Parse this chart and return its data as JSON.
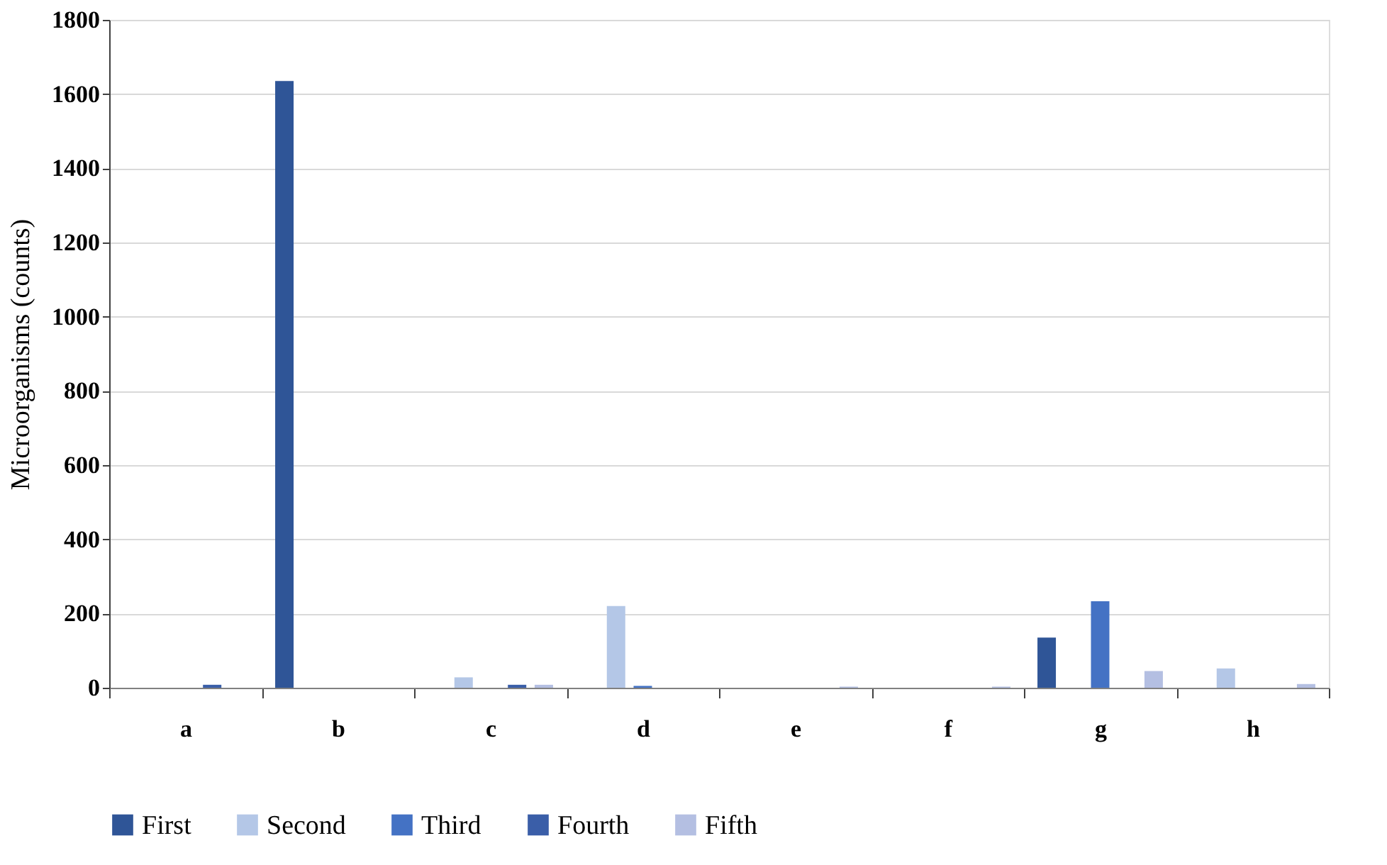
{
  "chart_data": {
    "type": "bar",
    "ylabel": "Microorganisms (counts)",
    "categories": [
      "a",
      "b",
      "c",
      "d",
      "e",
      "f",
      "g",
      "h"
    ],
    "series": [
      {
        "name": "First",
        "color": "#2f5597",
        "values": [
          0,
          1635,
          0,
          0,
          0,
          0,
          135,
          0
        ]
      },
      {
        "name": "Second",
        "color": "#b4c7e7",
        "values": [
          0,
          0,
          28,
          220,
          0,
          0,
          0,
          52
        ]
      },
      {
        "name": "Third",
        "color": "#4472c4",
        "values": [
          0,
          0,
          0,
          5,
          0,
          0,
          233,
          0
        ]
      },
      {
        "name": "Fourth",
        "color": "#3a5ea8",
        "values": [
          8,
          0,
          8,
          0,
          0,
          0,
          0,
          0
        ]
      },
      {
        "name": "Fifth",
        "color": "#b4bfe2",
        "values": [
          0,
          0,
          8,
          0,
          3,
          3,
          45,
          10
        ]
      }
    ],
    "ylim": [
      0,
      1800
    ],
    "yticks": [
      0,
      200,
      400,
      600,
      800,
      1000,
      1200,
      1400,
      1600,
      1800
    ],
    "grid": "y",
    "legend": "bottom"
  }
}
